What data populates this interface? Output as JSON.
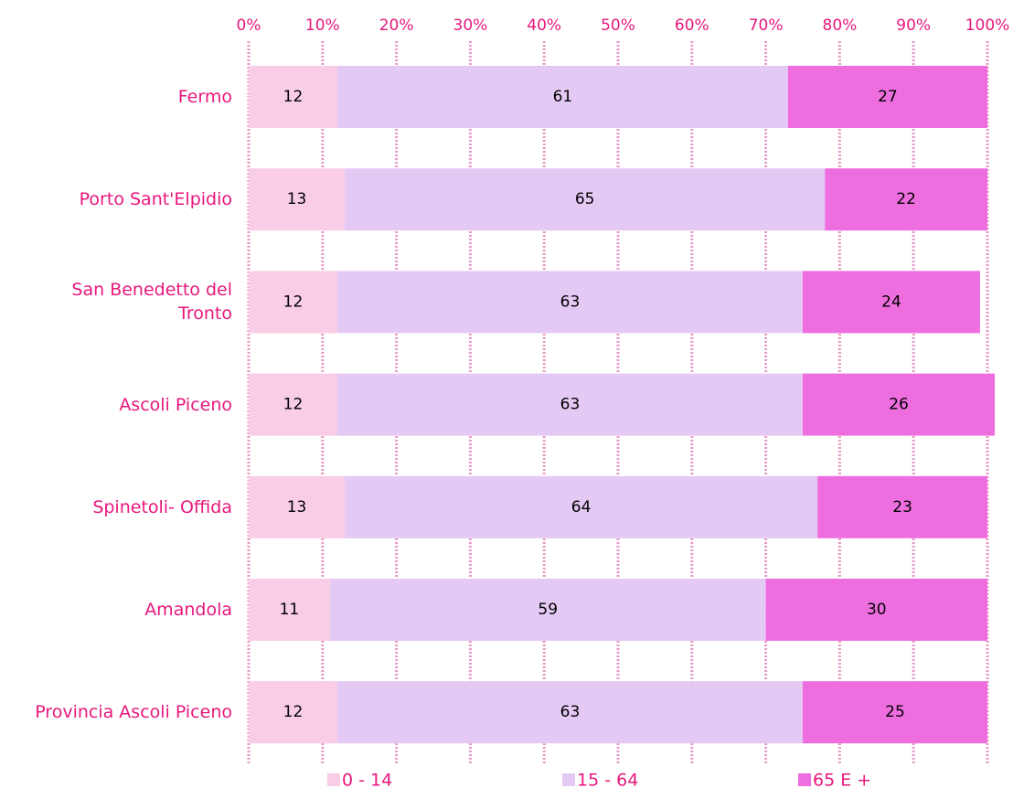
{
  "chart_data": {
    "type": "bar",
    "orientation": "horizontal",
    "stacked": true,
    "categories": [
      "Fermo",
      "Porto Sant'Elpidio",
      "San Benedetto del Tronto",
      "Ascoli Piceno",
      "Spinetoli- Offida",
      "Amandola",
      "Provincia Ascoli Piceno"
    ],
    "series": [
      {
        "name": "0 - 14",
        "color": "#f9cde6",
        "values": [
          12,
          13,
          12,
          12,
          13,
          11,
          12
        ]
      },
      {
        "name": "15 - 64",
        "color": "#e4c9f5",
        "values": [
          61,
          65,
          63,
          63,
          64,
          59,
          63
        ]
      },
      {
        "name": "65 E +",
        "color": "#ee6ee0",
        "values": [
          27,
          22,
          24,
          26,
          23,
          30,
          25
        ]
      }
    ],
    "xlim": [
      0,
      100
    ],
    "xticks": [
      {
        "value": 0,
        "label": "0%"
      },
      {
        "value": 10,
        "label": "10%"
      },
      {
        "value": 20,
        "label": "20%"
      },
      {
        "value": 30,
        "label": "30%"
      },
      {
        "value": 40,
        "label": "40%"
      },
      {
        "value": 50,
        "label": "50%"
      },
      {
        "value": 60,
        "label": "60%"
      },
      {
        "value": 70,
        "label": "70%"
      },
      {
        "value": 80,
        "label": "80%"
      },
      {
        "value": 90,
        "label": "90%"
      },
      {
        "value": 100,
        "label": "100%"
      }
    ],
    "grid": true,
    "legend": "bottom"
  }
}
